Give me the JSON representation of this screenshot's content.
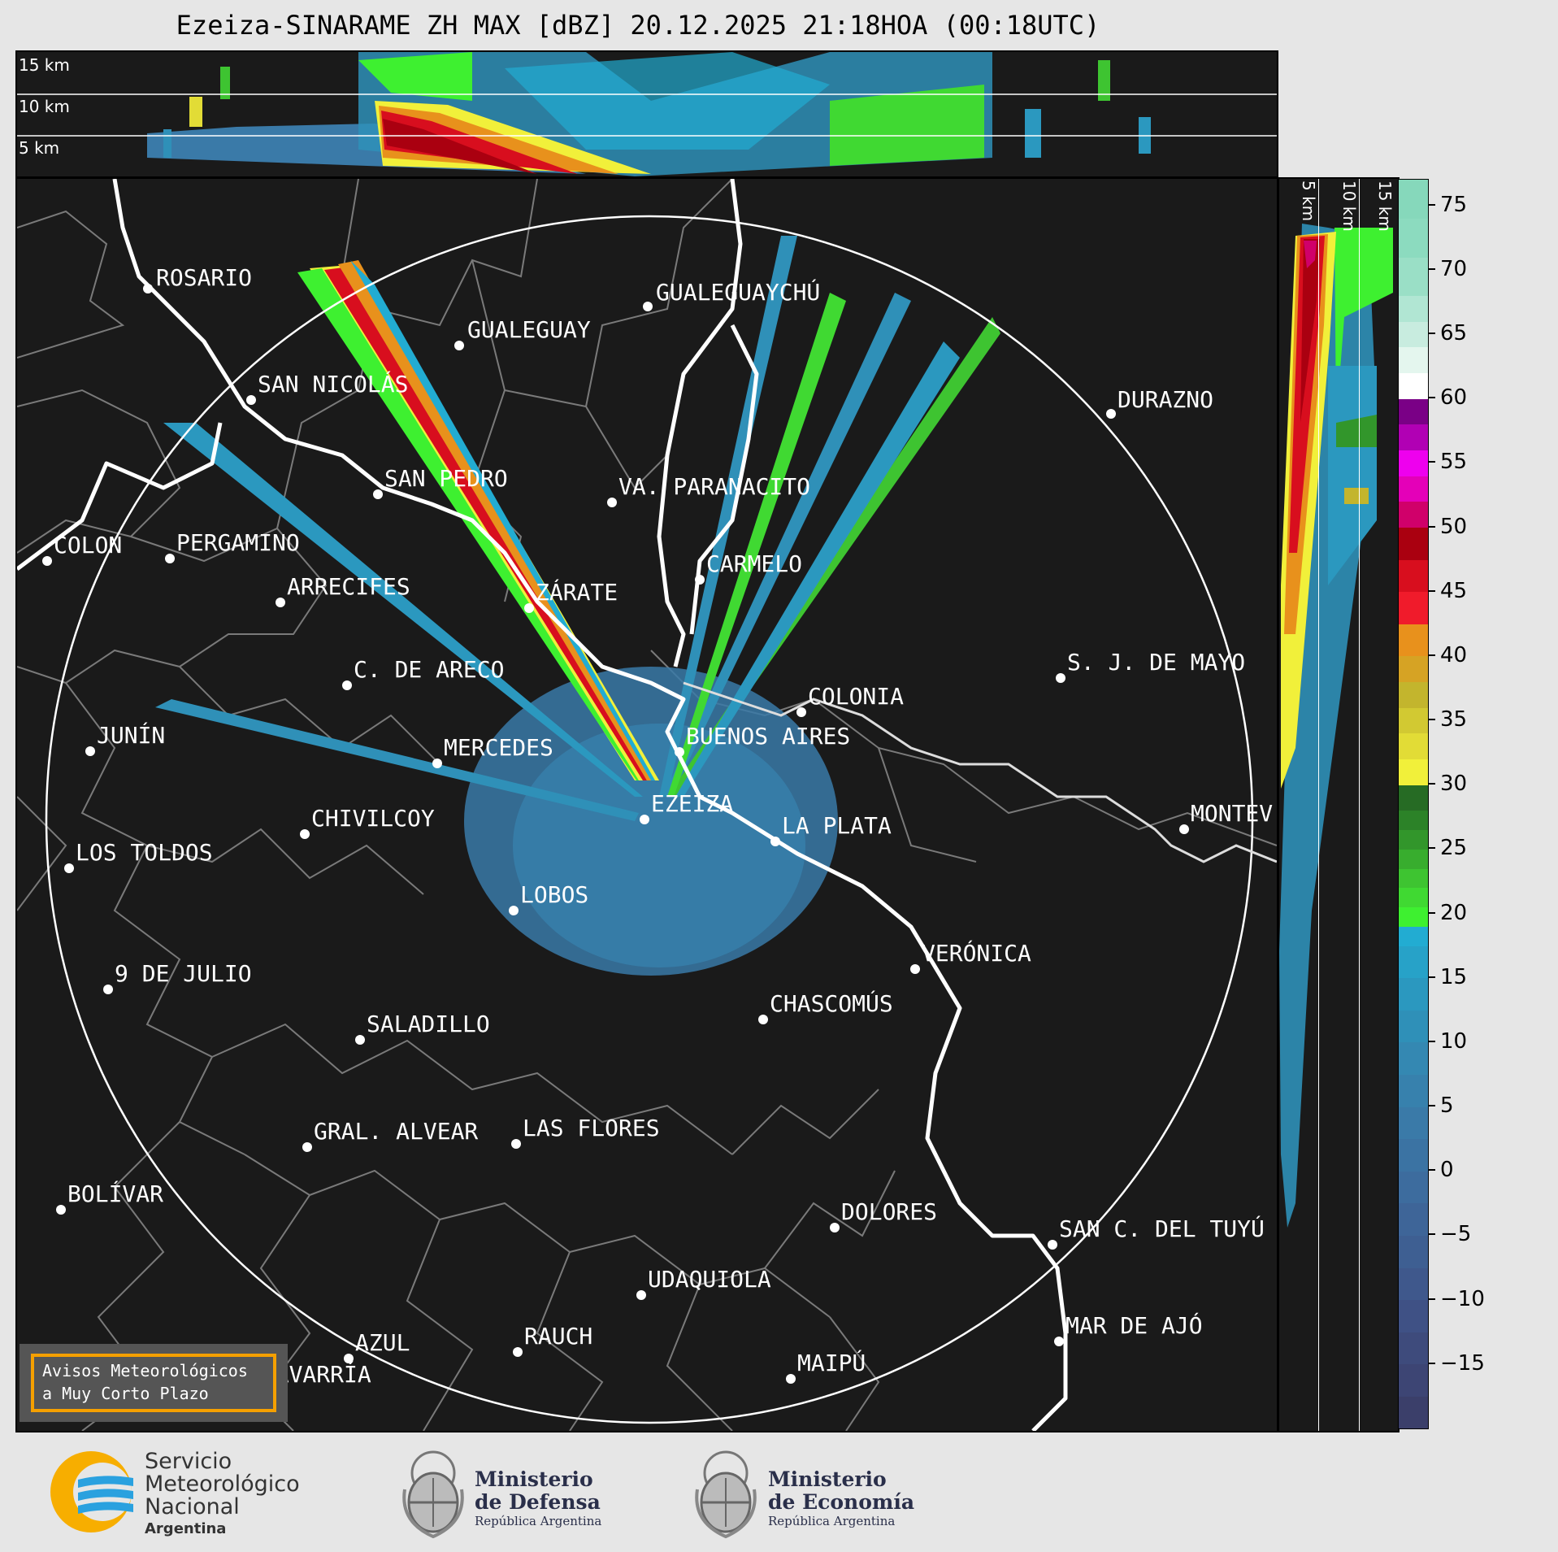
{
  "title": "Ezeiza-SINARAME ZH MAX [dBZ] 20.12.2025 21:18HOA (00:18UTC)",
  "top_panel": {
    "heights": [
      "15 km",
      "10 km",
      "5 km"
    ]
  },
  "side_panel": {
    "heights": [
      "5 km",
      "10 km",
      "15 km"
    ]
  },
  "colorbar": {
    "ticks": [
      "75",
      "70",
      "65",
      "60",
      "55",
      "50",
      "45",
      "40",
      "35",
      "30",
      "25",
      "20",
      "15",
      "10",
      "5",
      "0",
      "−5",
      "−10",
      "−15"
    ],
    "min": -20,
    "max": 77,
    "colors": [
      {
        "from": -20,
        "to": -17.5,
        "color": "#3b3f6a"
      },
      {
        "from": -17.5,
        "to": -15,
        "color": "#3d4574"
      },
      {
        "from": -15,
        "to": -12.5,
        "color": "#3e4b7c"
      },
      {
        "from": -12.5,
        "to": -10,
        "color": "#3f5185"
      },
      {
        "from": -10,
        "to": -7.5,
        "color": "#3f588c"
      },
      {
        "from": -7.5,
        "to": -5,
        "color": "#3e5f92"
      },
      {
        "from": -5,
        "to": -2.5,
        "color": "#3e6598"
      },
      {
        "from": -2.5,
        "to": 0,
        "color": "#3d6c9e"
      },
      {
        "from": 0,
        "to": 2.5,
        "color": "#3b73a3"
      },
      {
        "from": 2.5,
        "to": 5,
        "color": "#3a7aa8"
      },
      {
        "from": 5,
        "to": 7.5,
        "color": "#3781ad"
      },
      {
        "from": 7.5,
        "to": 10,
        "color": "#3488b2"
      },
      {
        "from": 10,
        "to": 12.5,
        "color": "#2f90b8"
      },
      {
        "from": 12.5,
        "to": 15,
        "color": "#2b98bf"
      },
      {
        "from": 15,
        "to": 17.5,
        "color": "#27a2c8"
      },
      {
        "from": 17.5,
        "to": 19,
        "color": "#22acd2"
      },
      {
        "from": 19,
        "to": 20.5,
        "color": "#3ef030"
      },
      {
        "from": 20.5,
        "to": 22,
        "color": "#40d932"
      },
      {
        "from": 22,
        "to": 23.5,
        "color": "#3ec431"
      },
      {
        "from": 23.5,
        "to": 25,
        "color": "#38ad2e"
      },
      {
        "from": 25,
        "to": 26.5,
        "color": "#32962b"
      },
      {
        "from": 26.5,
        "to": 28,
        "color": "#2c8228"
      },
      {
        "from": 28,
        "to": 30,
        "color": "#266b24"
      },
      {
        "from": 30,
        "to": 32,
        "color": "#f1f03a"
      },
      {
        "from": 32,
        "to": 34,
        "color": "#e2dc36"
      },
      {
        "from": 34,
        "to": 36,
        "color": "#d2c932"
      },
      {
        "from": 36,
        "to": 38,
        "color": "#c3b52d"
      },
      {
        "from": 38,
        "to": 40,
        "color": "#d6a324"
      },
      {
        "from": 40,
        "to": 42.5,
        "color": "#e8911c"
      },
      {
        "from": 42.5,
        "to": 45,
        "color": "#f01b2b"
      },
      {
        "from": 45,
        "to": 47.5,
        "color": "#d80e1e"
      },
      {
        "from": 47.5,
        "to": 50,
        "color": "#aa0010"
      },
      {
        "from": 50,
        "to": 52,
        "color": "#d0006a"
      },
      {
        "from": 52,
        "to": 54,
        "color": "#e400b8"
      },
      {
        "from": 54,
        "to": 56,
        "color": "#ee00ee"
      },
      {
        "from": 56,
        "to": 58,
        "color": "#b100b4"
      },
      {
        "from": 58,
        "to": 60,
        "color": "#7a0086"
      },
      {
        "from": 60,
        "to": 62,
        "color": "#ffffff"
      },
      {
        "from": 62,
        "to": 64,
        "color": "#e4f6ee"
      },
      {
        "from": 64,
        "to": 66,
        "color": "#c8ecdf"
      },
      {
        "from": 66,
        "to": 68,
        "color": "#b1e6d3"
      },
      {
        "from": 68,
        "to": 71,
        "color": "#9adfc6"
      },
      {
        "from": 71,
        "to": 74,
        "color": "#8cdbbf"
      },
      {
        "from": 74,
        "to": 77,
        "color": "#86d8bb"
      }
    ]
  },
  "cities": [
    {
      "name": "ROSARIO"
    },
    {
      "name": "GUALEGUAYCHÚ"
    },
    {
      "name": "GUALEGUAY"
    },
    {
      "name": "SAN NICOLÁS"
    },
    {
      "name": "DURAZNO"
    },
    {
      "name": "SAN PEDRO"
    },
    {
      "name": "VA. PARANACITO"
    },
    {
      "name": "COLON"
    },
    {
      "name": "PERGAMINO"
    },
    {
      "name": "CARMELO"
    },
    {
      "name": "ARRECIFES"
    },
    {
      "name": "ZÁRATE"
    },
    {
      "name": "S. J. DE MAYO"
    },
    {
      "name": "C. DE ARECO"
    },
    {
      "name": "COLONIA"
    },
    {
      "name": "JUNÍN"
    },
    {
      "name": "BUENOS AIRES"
    },
    {
      "name": "MERCEDES"
    },
    {
      "name": "MONTEV"
    },
    {
      "name": "EZEIZA"
    },
    {
      "name": "CHIVILCOY"
    },
    {
      "name": "LA PLATA"
    },
    {
      "name": "LOS TOLDOS"
    },
    {
      "name": "LOBOS"
    },
    {
      "name": "VERÓNICA"
    },
    {
      "name": "9 DE JULIO"
    },
    {
      "name": "CHASCOMÚS"
    },
    {
      "name": "SALADILLO"
    },
    {
      "name": "GRAL. ALVEAR"
    },
    {
      "name": "LAS FLORES"
    },
    {
      "name": "BOLÍVAR"
    },
    {
      "name": "DOLORES"
    },
    {
      "name": "SAN C. DEL TUYÚ"
    },
    {
      "name": "UDAQUIOLA"
    },
    {
      "name": "MAR DE AJÓ"
    },
    {
      "name": "AZUL"
    },
    {
      "name": "RAUCH"
    },
    {
      "name": "MAIPÚ"
    },
    {
      "name": "OLAVARRÍA"
    }
  ],
  "badge": {
    "line1": "Avisos Meteorológicos",
    "line2": "a Muy Corto Plazo"
  },
  "footer": {
    "smn": {
      "line1": "Servicio",
      "line2": "Meteorológico",
      "line3": "Nacional",
      "line4": "Argentina"
    },
    "defensa": {
      "line1": "Ministerio",
      "line2": "de Defensa",
      "line3": "República Argentina"
    },
    "economia": {
      "line1": "Ministerio",
      "line2": "de Economía",
      "line3": "República Argentina"
    }
  }
}
